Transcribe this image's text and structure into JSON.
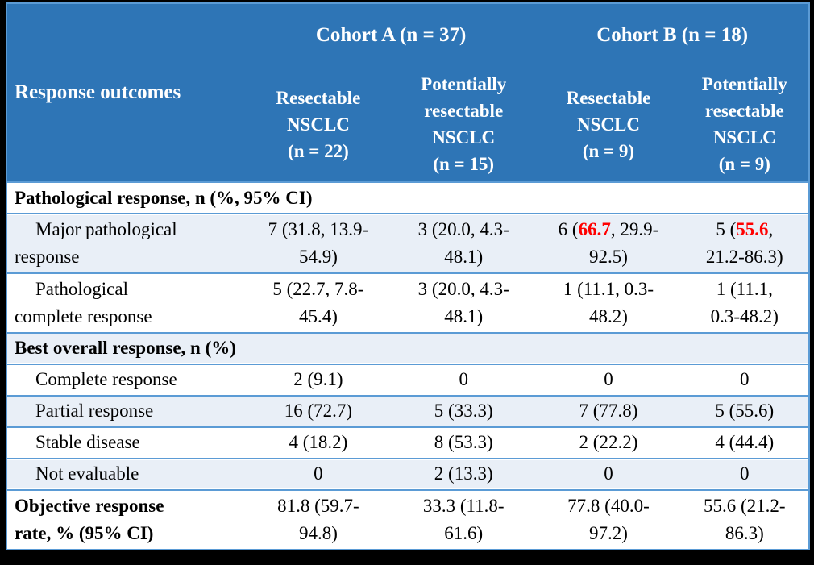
{
  "colors": {
    "header_bg": "#2E75B6",
    "header_text": "#FFFFFF",
    "row_alt_bg": "#E9EFF7",
    "row_white_bg": "#FFFFFF",
    "rule_blue": "#5B9BD5",
    "outer_frame": "#000000",
    "body_text": "#000000",
    "highlight_red": "#FF0000"
  },
  "table": {
    "corner_label": "Response outcomes",
    "cohort_headers": [
      {
        "label": "Cohort A (n = 37)"
      },
      {
        "label": "Cohort B (n = 18)"
      }
    ],
    "column_headers": [
      {
        "text": "Resectable\nNSCLC\n(n = 22)"
      },
      {
        "text": "Potentially\nresectable\nNSCLC\n(n = 15)"
      },
      {
        "text": "Resectable\nNSCLC\n(n = 9)"
      },
      {
        "text": "Potentially\nresectable\nNSCLC\n(n = 9)"
      }
    ],
    "rows": [
      {
        "type": "section",
        "shade": "white",
        "label": "Pathological response, n (%, 95% CI)"
      },
      {
        "type": "data",
        "shade": "alt",
        "label": "Major pathological\nresponse",
        "cells": [
          [
            {
              "t": "7 (31.8, 13.9-\n54.9)"
            }
          ],
          [
            {
              "t": "3 (20.0, 4.3-\n48.1)"
            }
          ],
          [
            {
              "t": "6 ("
            },
            {
              "t": "66.7",
              "red": true
            },
            {
              "t": ", 29.9-\n92.5)"
            }
          ],
          [
            {
              "t": "5 ("
            },
            {
              "t": "55.6",
              "red": true
            },
            {
              "t": ",\n21.2-86.3)"
            }
          ]
        ]
      },
      {
        "type": "data",
        "shade": "white",
        "label": "Pathological\ncomplete response",
        "cells": [
          [
            {
              "t": "5 (22.7, 7.8-\n45.4)"
            }
          ],
          [
            {
              "t": "3 (20.0, 4.3-\n48.1)"
            }
          ],
          [
            {
              "t": "1 (11.1, 0.3-\n48.2)"
            }
          ],
          [
            {
              "t": "1 (11.1,\n0.3-48.2)"
            }
          ]
        ]
      },
      {
        "type": "section",
        "shade": "alt",
        "label": "Best overall response, n (%)"
      },
      {
        "type": "data",
        "shade": "white",
        "label": "Complete response",
        "cells": [
          [
            {
              "t": "2 (9.1)"
            }
          ],
          [
            {
              "t": "0"
            }
          ],
          [
            {
              "t": "0"
            }
          ],
          [
            {
              "t": "0"
            }
          ]
        ]
      },
      {
        "type": "data",
        "shade": "alt",
        "label": "Partial response",
        "cells": [
          [
            {
              "t": "16 (72.7)"
            }
          ],
          [
            {
              "t": "5 (33.3)"
            }
          ],
          [
            {
              "t": "7 (77.8)"
            }
          ],
          [
            {
              "t": "5 (55.6)"
            }
          ]
        ]
      },
      {
        "type": "data",
        "shade": "white",
        "label": "Stable disease",
        "cells": [
          [
            {
              "t": "4 (18.2)"
            }
          ],
          [
            {
              "t": "8 (53.3)"
            }
          ],
          [
            {
              "t": "2 (22.2)"
            }
          ],
          [
            {
              "t": "4 (44.4)"
            }
          ]
        ]
      },
      {
        "type": "data",
        "shade": "alt",
        "label": "Not evaluable",
        "cells": [
          [
            {
              "t": "0"
            }
          ],
          [
            {
              "t": "2 (13.3)"
            }
          ],
          [
            {
              "t": "0"
            }
          ],
          [
            {
              "t": "0"
            }
          ]
        ]
      },
      {
        "type": "data",
        "shade": "white",
        "bold_label": true,
        "flush_label": true,
        "label": "Objective response\nrate, % (95% CI)",
        "cells": [
          [
            {
              "t": "81.8 (59.7-\n94.8)"
            }
          ],
          [
            {
              "t": "33.3 (11.8-\n61.6)"
            }
          ],
          [
            {
              "t": "77.8 (40.0-\n97.2)"
            }
          ],
          [
            {
              "t": "55.6 (21.2-\n86.3)"
            }
          ]
        ]
      }
    ]
  }
}
